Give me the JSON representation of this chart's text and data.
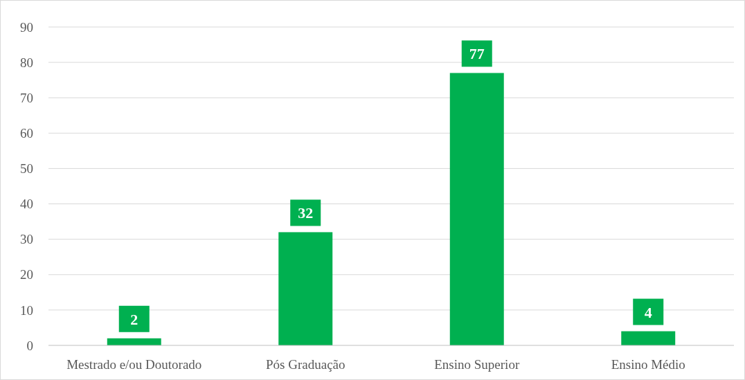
{
  "chart_data": {
    "type": "bar",
    "categories": [
      "Mestrado e/ou Doutorado",
      "Pós Graduação",
      "Ensino Superior",
      "Ensino Médio"
    ],
    "values": [
      2,
      32,
      77,
      4
    ],
    "color": "#00b050",
    "ylim": [
      0,
      90
    ],
    "yticks": [
      0,
      10,
      20,
      30,
      40,
      50,
      60,
      70,
      80,
      90
    ],
    "grid": "y",
    "data_labels": true
  }
}
